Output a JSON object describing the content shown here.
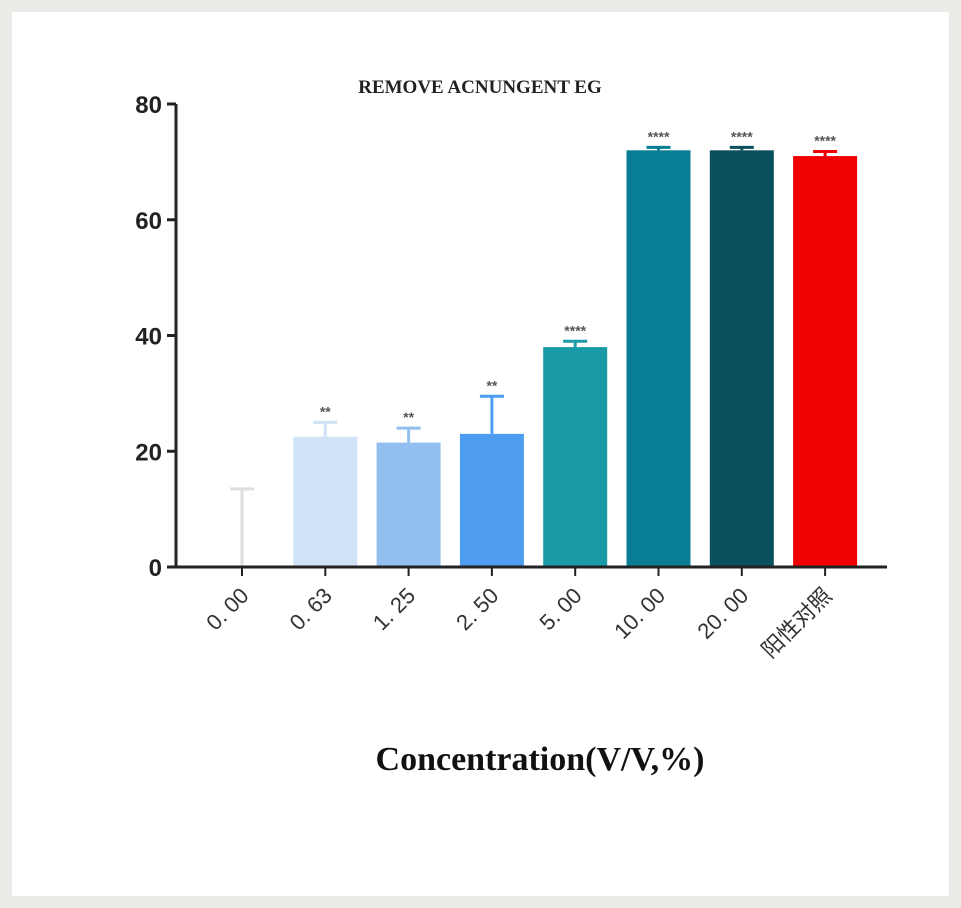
{
  "chart_data": {
    "type": "bar",
    "title": "REMOVE ACNUNGENT EG",
    "xlabel": "Concentration(V/V,%)",
    "ylabel": "",
    "ylim": [
      0,
      80
    ],
    "yticks": [
      "0",
      "20",
      "40",
      "60",
      "80"
    ],
    "categories": [
      "0. 00",
      "0. 63",
      "1. 25",
      "2. 50",
      "5. 00",
      "10. 00",
      "20. 00",
      "阳性对照"
    ],
    "values": [
      0,
      22.5,
      21.5,
      23,
      38,
      72,
      72,
      71
    ],
    "errors": [
      13.5,
      2.5,
      2.5,
      6.5,
      1.0,
      0.5,
      0.5,
      0.8
    ],
    "significance": [
      "",
      "**",
      "**",
      "**",
      "****",
      "****",
      "****",
      "****"
    ],
    "colors": [
      "#d9d9d9",
      "#cfe2f6",
      "#92bff0",
      "#4d9cf0",
      "#1a9aa7",
      "#087d94",
      "#0a4f5e",
      "#f00000"
    ],
    "grid": false,
    "legend": "none"
  }
}
